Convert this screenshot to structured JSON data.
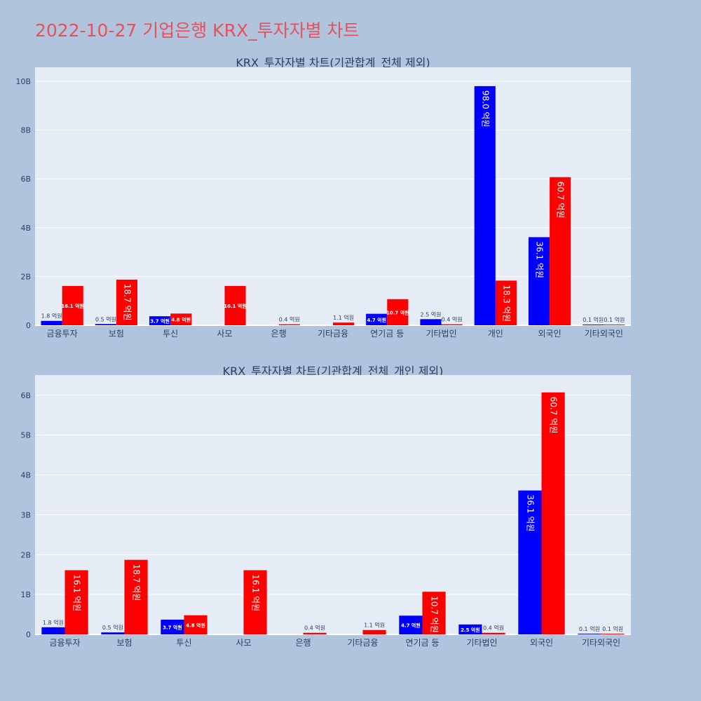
{
  "page": {
    "title": "2022-10-27 기업은행 KRX_투자자별 차트"
  },
  "colors": {
    "buy": "#0000ff",
    "sell": "#ff0000",
    "page_background": "#b0c4de",
    "plot_background": "#e5ecf6",
    "title": "#e8505b",
    "axis_text": "#2a3f5f"
  },
  "chart_data": [
    {
      "type": "bar",
      "title": "KRX_투자자별 차트(기관합계_전체 제외)",
      "categories": [
        "금융투자",
        "보험",
        "투신",
        "사모",
        "은행",
        "기타금융",
        "연기금 등",
        "기타법인",
        "개인",
        "외국인",
        "기타외국인"
      ],
      "series": [
        {
          "color": "#0000ff",
          "values": [
            0.18,
            0.05,
            0.37,
            0,
            0,
            0,
            0.47,
            0.25,
            9.8,
            3.61,
            0.01
          ],
          "labels": [
            "1.8 억원",
            "0.5 억원",
            "3.7 억원",
            "",
            "",
            "",
            "4.7 억원",
            "2.5 억원",
            "98.0 억원",
            "36.1 억원",
            "0.1 억원"
          ]
        },
        {
          "color": "#ff0000",
          "values": [
            1.61,
            1.87,
            0.48,
            1.61,
            0.04,
            0.11,
            1.07,
            0.04,
            1.83,
            6.07,
            0.01
          ],
          "labels": [
            "16.1 억원",
            "18.7 억원",
            "4.8 억원",
            "16.1 억원",
            "0.4 억원",
            "1.1 억원",
            "10.7 억원",
            "0.4 억원",
            "18.3 억원",
            "60.7 억원",
            "0.1 억원"
          ]
        }
      ],
      "ylim": [
        0,
        10.4
      ],
      "yticks": [
        0,
        2,
        4,
        6,
        8,
        10
      ],
      "yticklabels": [
        "0",
        "2B",
        "4B",
        "6B",
        "8B",
        "10B"
      ],
      "grid": true
    },
    {
      "type": "bar",
      "title": "KRX_투자자별 차트(기관합계_전체_개인 제외)",
      "categories": [
        "금융투자",
        "보험",
        "투신",
        "사모",
        "은행",
        "기타금융",
        "연기금 등",
        "기타법인",
        "외국인",
        "기타외국인"
      ],
      "series": [
        {
          "color": "#0000ff",
          "values": [
            0.18,
            0.05,
            0.37,
            0,
            0,
            0,
            0.47,
            0.25,
            3.61,
            0.01
          ],
          "labels": [
            "1.8 억원",
            "0.5 억원",
            "3.7 억원",
            "",
            "",
            "",
            "4.7 억원",
            "2.5 억원",
            "36.1 억원",
            "0.1 억원"
          ]
        },
        {
          "color": "#ff0000",
          "values": [
            1.61,
            1.87,
            0.48,
            1.61,
            0.04,
            0.11,
            1.07,
            0.04,
            6.07,
            0.01
          ],
          "labels": [
            "16.1 억원",
            "18.7 억원",
            "4.8 억원",
            "16.1 억원",
            "0.4 억원",
            "1.1 억원",
            "10.7 억원",
            "0.4 억원",
            "60.7 억원",
            "0.1 억원"
          ]
        }
      ],
      "ylim": [
        0,
        6.4
      ],
      "yticks": [
        0,
        1,
        2,
        3,
        4,
        5,
        6
      ],
      "yticklabels": [
        "0",
        "1B",
        "2B",
        "3B",
        "4B",
        "5B",
        "6B"
      ],
      "grid": true
    }
  ]
}
